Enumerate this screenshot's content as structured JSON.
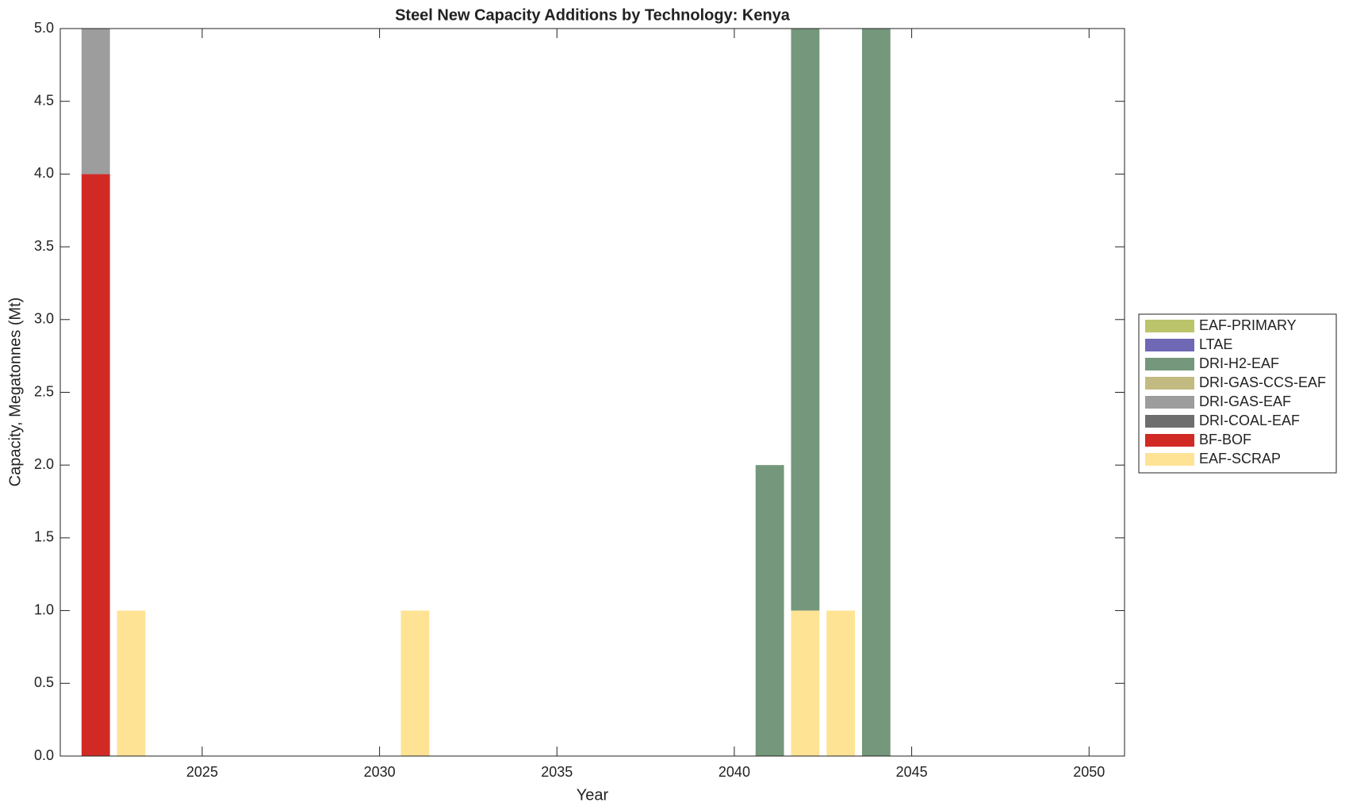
{
  "chart_data": {
    "type": "stacked-bar",
    "title": "Steel New Capacity Additions by Technology: Kenya",
    "xlabel": "Year",
    "ylabel": "Capacity, Megatonnes (Mt)",
    "x": [
      2022,
      2023,
      2031,
      2041,
      2042,
      2043,
      2044
    ],
    "series": [
      {
        "name": "EAF-PRIMARY",
        "color": "#bcc46b",
        "values": [
          0,
          0,
          0,
          0,
          0,
          0,
          0
        ]
      },
      {
        "name": "LTAE",
        "color": "#6f68b4",
        "values": [
          0,
          0,
          0,
          0,
          0,
          0,
          0
        ]
      },
      {
        "name": "DRI-H2-EAF",
        "color": "#75977b",
        "values": [
          0,
          0,
          0,
          2,
          4,
          0,
          5
        ]
      },
      {
        "name": "DRI-GAS-CCS-EAF",
        "color": "#c2ba80",
        "values": [
          0,
          0,
          0,
          0,
          0,
          0,
          0
        ]
      },
      {
        "name": "DRI-GAS-EAF",
        "color": "#9d9d9d",
        "values": [
          1,
          0,
          0,
          0,
          0,
          0,
          0
        ]
      },
      {
        "name": "DRI-COAL-EAF",
        "color": "#6e6e6e",
        "values": [
          0,
          0,
          0,
          0,
          0,
          0,
          0
        ]
      },
      {
        "name": "BF-BOF",
        "color": "#d12a25",
        "values": [
          4,
          0,
          0,
          0,
          0,
          0,
          0
        ]
      },
      {
        "name": "EAF-SCRAP",
        "color": "#fee395",
        "values": [
          0,
          1,
          1,
          0,
          1,
          1,
          0
        ]
      }
    ],
    "xlim": [
      2021,
      2051
    ],
    "xticks": [
      2025,
      2030,
      2035,
      2040,
      2045,
      2050
    ],
    "ylim": [
      0,
      5
    ],
    "yticks": [
      {
        "value": 0,
        "label": "0.0"
      },
      {
        "value": 0.5,
        "label": "0.5"
      },
      {
        "value": 1,
        "label": "1.0"
      },
      {
        "value": 1.5,
        "label": "1.5"
      },
      {
        "value": 2,
        "label": "2.0"
      },
      {
        "value": 2.5,
        "label": "2.5"
      },
      {
        "value": 3,
        "label": "3.0"
      },
      {
        "value": 3.5,
        "label": "3.5"
      },
      {
        "value": 4,
        "label": "4.0"
      },
      {
        "value": 4.5,
        "label": "4.5"
      },
      {
        "value": 5,
        "label": "5.0"
      }
    ],
    "legend": "outside-right"
  }
}
